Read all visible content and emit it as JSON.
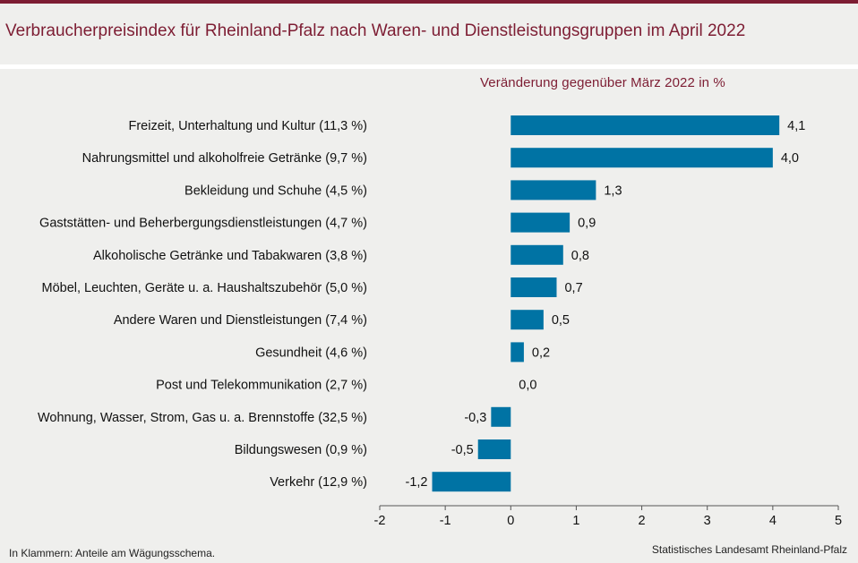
{
  "header": {
    "title": "Verbraucherpreisindex für Rheinland-Pfalz nach Waren- und Dienstleistungsgruppen im April 2022",
    "subtitle": "Veränderung  gegenüber  März 2022 in %"
  },
  "footer": {
    "note": "In Klammern: Anteile am Wägungsschema.",
    "source": "Statistisches Landesamt Rheinland-Pfalz"
  },
  "colors": {
    "bar": "#0073a4",
    "accent": "#7d1d33",
    "background": "#efefed"
  },
  "chart_data": {
    "type": "bar",
    "orientation": "horizontal",
    "title": "Verbraucherpreisindex für Rheinland-Pfalz nach Waren- und Dienstleistungsgruppen im April 2022",
    "subtitle": "Veränderung  gegenüber  März 2022 in %",
    "categories": [
      "Freizeit, Unterhaltung und Kultur (11,3 %)",
      "Nahrungsmittel und alkoholfreie Getränke (9,7 %)",
      "Bekleidung und Schuhe (4,5 %)",
      "Gaststätten- und Beherbergungsdienstleistungen (4,7 %)",
      "Alkoholische Getränke und Tabakwaren (3,8 %)",
      "Möbel, Leuchten, Geräte u. a. Haushaltszubehör (5,0 %)",
      "Andere Waren und Dienstleistungen (7,4 %)",
      "Gesundheit (4,6 %)",
      "Post und Telekommunikation (2,7 %)",
      "Wohnung, Wasser, Strom, Gas u. a. Brennstoffe (32,5 %)",
      "Bildungswesen (0,9 %)",
      "Verkehr (12,9 %)"
    ],
    "values": [
      4.1,
      4.0,
      1.3,
      0.9,
      0.8,
      0.7,
      0.5,
      0.2,
      0.0,
      -0.3,
      -0.5,
      -1.2
    ],
    "value_labels": [
      "4,1",
      "4,0",
      "1,3",
      "0,9",
      "0,8",
      "0,7",
      "0,5",
      "0,2",
      "0,0",
      "-0,3",
      "-0,5",
      "-1,2"
    ],
    "xlim": [
      -2,
      5
    ],
    "xticks": [
      -2,
      -1,
      0,
      1,
      2,
      3,
      4,
      5
    ],
    "xtick_labels": [
      "-2",
      "-1",
      "0",
      "1",
      "2",
      "3",
      "4",
      "5"
    ],
    "grid": false,
    "legend": "none"
  }
}
